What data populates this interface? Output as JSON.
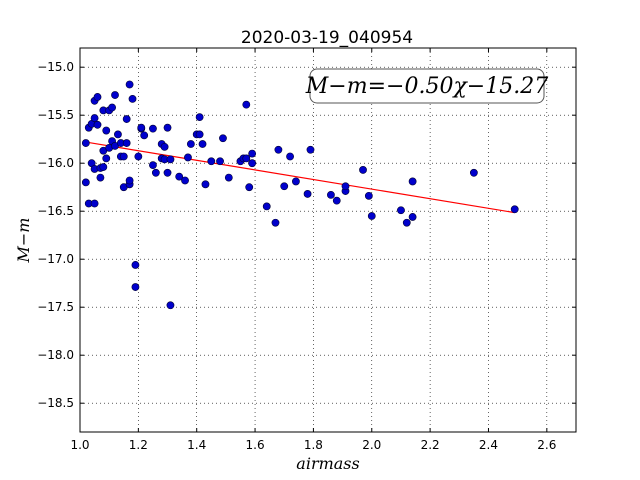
{
  "chart_data": {
    "type": "scatter",
    "title": "2020-03-19_040954",
    "xlabel": "airmass",
    "ylabel": "M−m",
    "annotation": "M−m=−0.50χ−15.27",
    "xlim": [
      1.0,
      2.7
    ],
    "ylim": [
      -18.8,
      -14.8
    ],
    "y_inverted": true,
    "xticks": [
      1.0,
      1.2,
      1.4,
      1.6,
      1.8,
      2.0,
      2.2,
      2.4,
      2.6
    ],
    "xtick_labels": [
      "1.0",
      "1.2",
      "1.4",
      "1.6",
      "1.8",
      "2.0",
      "2.2",
      "2.4",
      "2.6"
    ],
    "yticks": [
      -15.0,
      -15.5,
      -16.0,
      -16.5,
      -17.0,
      -17.5,
      -18.0,
      -18.5
    ],
    "ytick_labels": [
      "−15.0",
      "−15.5",
      "−16.0",
      "−16.5",
      "−17.0",
      "−17.5",
      "−18.0",
      "−18.5"
    ],
    "grid": true,
    "point_color": "#0000cc",
    "fit_color": "#ff0000",
    "fit": {
      "slope": -0.5,
      "intercept": -15.27,
      "x_range": [
        1.02,
        2.49
      ]
    },
    "points": [
      [
        1.02,
        -15.79
      ],
      [
        1.02,
        -16.2
      ],
      [
        1.03,
        -16.42
      ],
      [
        1.03,
        -15.63
      ],
      [
        1.04,
        -15.59
      ],
      [
        1.04,
        -16.0
      ],
      [
        1.05,
        -16.42
      ],
      [
        1.05,
        -16.06
      ],
      [
        1.05,
        -15.35
      ],
      [
        1.05,
        -15.53
      ],
      [
        1.06,
        -15.6
      ],
      [
        1.06,
        -15.31
      ],
      [
        1.07,
        -16.15
      ],
      [
        1.07,
        -16.05
      ],
      [
        1.08,
        -15.45
      ],
      [
        1.08,
        -15.87
      ],
      [
        1.08,
        -16.04
      ],
      [
        1.09,
        -15.95
      ],
      [
        1.09,
        -15.66
      ],
      [
        1.1,
        -15.45
      ],
      [
        1.1,
        -15.84
      ],
      [
        1.11,
        -15.42
      ],
      [
        1.11,
        -15.77
      ],
      [
        1.12,
        -15.29
      ],
      [
        1.12,
        -15.82
      ],
      [
        1.13,
        -15.7
      ],
      [
        1.14,
        -15.93
      ],
      [
        1.14,
        -15.79
      ],
      [
        1.15,
        -16.25
      ],
      [
        1.15,
        -15.93
      ],
      [
        1.16,
        -15.79
      ],
      [
        1.16,
        -15.54
      ],
      [
        1.17,
        -15.18
      ],
      [
        1.17,
        -16.22
      ],
      [
        1.17,
        -16.18
      ],
      [
        1.18,
        -15.33
      ],
      [
        1.19,
        -17.06
      ],
      [
        1.19,
        -17.29
      ],
      [
        1.2,
        -15.93
      ],
      [
        1.21,
        -15.64
      ],
      [
        1.21,
        -15.63
      ],
      [
        1.22,
        -15.71
      ],
      [
        1.25,
        -16.02
      ],
      [
        1.25,
        -15.64
      ],
      [
        1.26,
        -16.1
      ],
      [
        1.28,
        -15.8
      ],
      [
        1.28,
        -15.95
      ],
      [
        1.29,
        -15.83
      ],
      [
        1.29,
        -15.96
      ],
      [
        1.3,
        -15.63
      ],
      [
        1.3,
        -16.1
      ],
      [
        1.31,
        -15.96
      ],
      [
        1.31,
        -17.48
      ],
      [
        1.34,
        -16.14
      ],
      [
        1.36,
        -16.18
      ],
      [
        1.37,
        -15.94
      ],
      [
        1.38,
        -15.8
      ],
      [
        1.4,
        -15.7
      ],
      [
        1.41,
        -15.7
      ],
      [
        1.41,
        -15.52
      ],
      [
        1.42,
        -15.8
      ],
      [
        1.43,
        -16.22
      ],
      [
        1.45,
        -15.98
      ],
      [
        1.48,
        -15.98
      ],
      [
        1.49,
        -15.74
      ],
      [
        1.51,
        -16.15
      ],
      [
        1.55,
        -15.98
      ],
      [
        1.56,
        -15.95
      ],
      [
        1.57,
        -15.39
      ],
      [
        1.57,
        -15.95
      ],
      [
        1.58,
        -16.25
      ],
      [
        1.59,
        -15.9
      ],
      [
        1.59,
        -16.0
      ],
      [
        1.64,
        -16.45
      ],
      [
        1.67,
        -16.62
      ],
      [
        1.68,
        -15.86
      ],
      [
        1.7,
        -16.24
      ],
      [
        1.72,
        -15.93
      ],
      [
        1.74,
        -16.19
      ],
      [
        1.78,
        -16.32
      ],
      [
        1.79,
        -15.86
      ],
      [
        1.86,
        -16.33
      ],
      [
        1.88,
        -16.39
      ],
      [
        1.91,
        -16.29
      ],
      [
        1.91,
        -16.24
      ],
      [
        1.97,
        -16.07
      ],
      [
        1.99,
        -16.34
      ],
      [
        2.0,
        -16.55
      ],
      [
        2.1,
        -16.49
      ],
      [
        2.12,
        -16.62
      ],
      [
        2.14,
        -16.19
      ],
      [
        2.14,
        -16.56
      ],
      [
        2.35,
        -16.1
      ],
      [
        2.49,
        -16.48
      ]
    ]
  }
}
